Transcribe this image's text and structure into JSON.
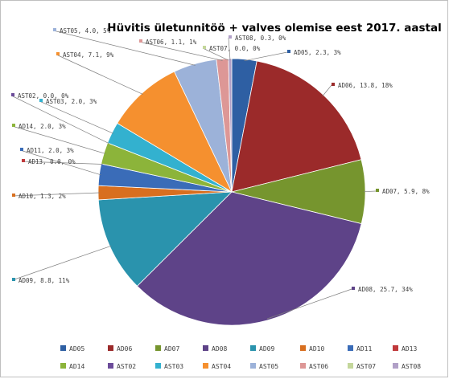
{
  "chart_data": {
    "type": "pie",
    "title": "Hüvitis ületunnitöö + valves olemise eest 2017. aastal",
    "slices": [
      {
        "name": "AD05",
        "value": 2.3,
        "percent": "3%",
        "label": "AD05, 2.3, 3%",
        "color": "#2e5fa3"
      },
      {
        "name": "AD06",
        "value": 13.8,
        "percent": "18%",
        "label": "AD06, 13.8, 18%",
        "color": "#9b2a2a"
      },
      {
        "name": "AD07",
        "value": 5.9,
        "percent": "8%",
        "label": "AD07, 5.9, 8%",
        "color": "#76952e"
      },
      {
        "name": "AD08",
        "value": 25.7,
        "percent": "34%",
        "label": "AD08, 25.7, 34%",
        "color": "#5e4388"
      },
      {
        "name": "AD09",
        "value": 8.8,
        "percent": "11%",
        "label": "AD09, 8.8, 11%",
        "color": "#2a93ad"
      },
      {
        "name": "AD10",
        "value": 1.3,
        "percent": "2%",
        "label": "AD10, 1.3, 2%",
        "color": "#d86f1f"
      },
      {
        "name": "AD11",
        "value": 2.0,
        "percent": "3%",
        "label": "AD11, 2.0, 3%",
        "color": "#3a6cb8"
      },
      {
        "name": "AD13",
        "value": 0.0,
        "percent": "0%",
        "label": "AD13, 0.0, 0%",
        "color": "#c0393b"
      },
      {
        "name": "AD14",
        "value": 2.0,
        "percent": "3%",
        "label": "AD14, 2.0, 3%",
        "color": "#8cb43a"
      },
      {
        "name": "AST02",
        "value": 0.0,
        "percent": "0%",
        "label": "AST02, 0.0, 0%",
        "color": "#6c4c9a"
      },
      {
        "name": "AST03",
        "value": 2.0,
        "percent": "3%",
        "label": "AST03, 2.0, 3%",
        "color": "#33b1cf"
      },
      {
        "name": "AST04",
        "value": 7.1,
        "percent": "9%",
        "label": "AST04, 7.1, 9%",
        "color": "#f5902f"
      },
      {
        "name": "AST05",
        "value": 4.0,
        "percent": "5%",
        "label": "AST05, 4.0, 5%",
        "color": "#9cb2d9"
      },
      {
        "name": "AST06",
        "value": 1.1,
        "percent": "1%",
        "label": "AST06, 1.1, 1%",
        "color": "#dd9796"
      },
      {
        "name": "AST07",
        "value": 0.0,
        "percent": "0%",
        "label": "AST07, 0.0, 0%",
        "color": "#c4d79b"
      },
      {
        "name": "AST08",
        "value": 0.3,
        "percent": "0%",
        "label": "AST08, 0.3, 0%",
        "color": "#b1a0c7"
      }
    ],
    "legend_position": "bottom",
    "start_angle_deg": 0,
    "direction": "clockwise"
  }
}
